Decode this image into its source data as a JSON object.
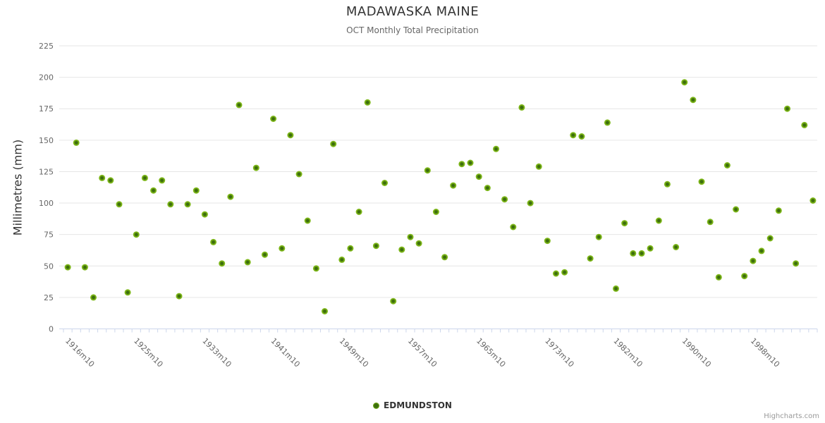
{
  "title": "MADAWASKA MAINE",
  "subtitle": "OCT Monthly Total Precipitation",
  "y_axis_title": "Millimetres (mm)",
  "legend": {
    "label": "EDMUNDSTON"
  },
  "credit": "Highcharts.com",
  "colors": {
    "marker_outer": "#7cb415",
    "marker_outer_edge": "#7fba1f",
    "marker_inner": "#3c6e0d",
    "grid": "#e6e6e6",
    "axis_line": "#ccd6eb",
    "tick": "#ccd6eb",
    "title": "#333333",
    "subtitle": "#666666",
    "axis_label": "#666666",
    "legend_text": "#333333",
    "credit": "#999999"
  },
  "chart_data": {
    "type": "scatter",
    "title": "MADAWASKA MAINE",
    "subtitle": "OCT Monthly Total Precipitation",
    "xlabel": "",
    "ylabel": "Millimetres (mm)",
    "ylim": [
      0,
      225
    ],
    "yticks": [
      0,
      25,
      50,
      75,
      100,
      125,
      150,
      175,
      200,
      225
    ],
    "grid": true,
    "legend_position": "bottom-center",
    "xtick_label_step": 8,
    "xtick_rotation_deg": 45,
    "xtick_labels_shown": [
      "1916m10",
      "1925m10",
      "1933m10",
      "1941m10",
      "1949m10",
      "1957m10",
      "1965m10",
      "1973m10",
      "1982m10",
      "1990m10",
      "1998m10"
    ],
    "categories": [
      "1916m10",
      "1917m10",
      "1918m10",
      "1919m10",
      "1921m10",
      "1922m10",
      "1923m10",
      "1924m10",
      "1925m10",
      "1926m10",
      "1927m10",
      "1928m10",
      "1929m10",
      "1930m10",
      "1931m10",
      "1932m10",
      "1933m10",
      "1934m10",
      "1935m10",
      "1936m10",
      "1937m10",
      "1938m10",
      "1939m10",
      "1940m10",
      "1941m10",
      "1942m10",
      "1943m10",
      "1944m10",
      "1945m10",
      "1946m10",
      "1947m10",
      "1948m10",
      "1949m10",
      "1950m10",
      "1951m10",
      "1952m10",
      "1953m10",
      "1954m10",
      "1955m10",
      "1956m10",
      "1957m10",
      "1958m10",
      "1959m10",
      "1960m10",
      "1961m10",
      "1962m10",
      "1963m10",
      "1964m10",
      "1965m10",
      "1966m10",
      "1967m10",
      "1968m10",
      "1969m10",
      "1970m10",
      "1971m10",
      "1972m10",
      "1973m10",
      "1974m10",
      "1975m10",
      "1976m10",
      "1977m10",
      "1978m10",
      "1980m10",
      "1981m10",
      "1982m10",
      "1983m10",
      "1984m10",
      "1985m10",
      "1986m10",
      "1987m10",
      "1988m10",
      "1989m10",
      "1990m10",
      "1991m10",
      "1992m10",
      "1993m10",
      "1994m10",
      "1995m10",
      "1996m10",
      "1997m10",
      "1998m10",
      "1999m10",
      "2000m10",
      "2001m10",
      "2002m10",
      "2003m10",
      "2004m10",
      "2005m10"
    ],
    "series": [
      {
        "name": "EDMUNDSTON",
        "values": [
          49,
          148,
          49,
          25,
          120,
          118,
          99,
          29,
          75,
          120,
          110,
          118,
          99,
          26,
          99,
          110,
          91,
          69,
          52,
          105,
          178,
          53,
          128,
          59,
          167,
          64,
          154,
          123,
          86,
          48,
          14,
          147,
          55,
          64,
          93,
          180,
          66,
          116,
          22,
          63,
          73,
          68,
          126,
          93,
          57,
          114,
          131,
          132,
          121,
          112,
          143,
          103,
          81,
          176,
          100,
          129,
          70,
          44,
          45,
          154,
          153,
          56,
          73,
          164,
          32,
          84,
          60,
          60,
          64,
          86,
          115,
          65,
          196,
          182,
          117,
          85,
          41,
          130,
          95,
          42,
          54,
          62,
          72,
          94,
          175,
          52,
          162,
          102
        ]
      }
    ]
  }
}
